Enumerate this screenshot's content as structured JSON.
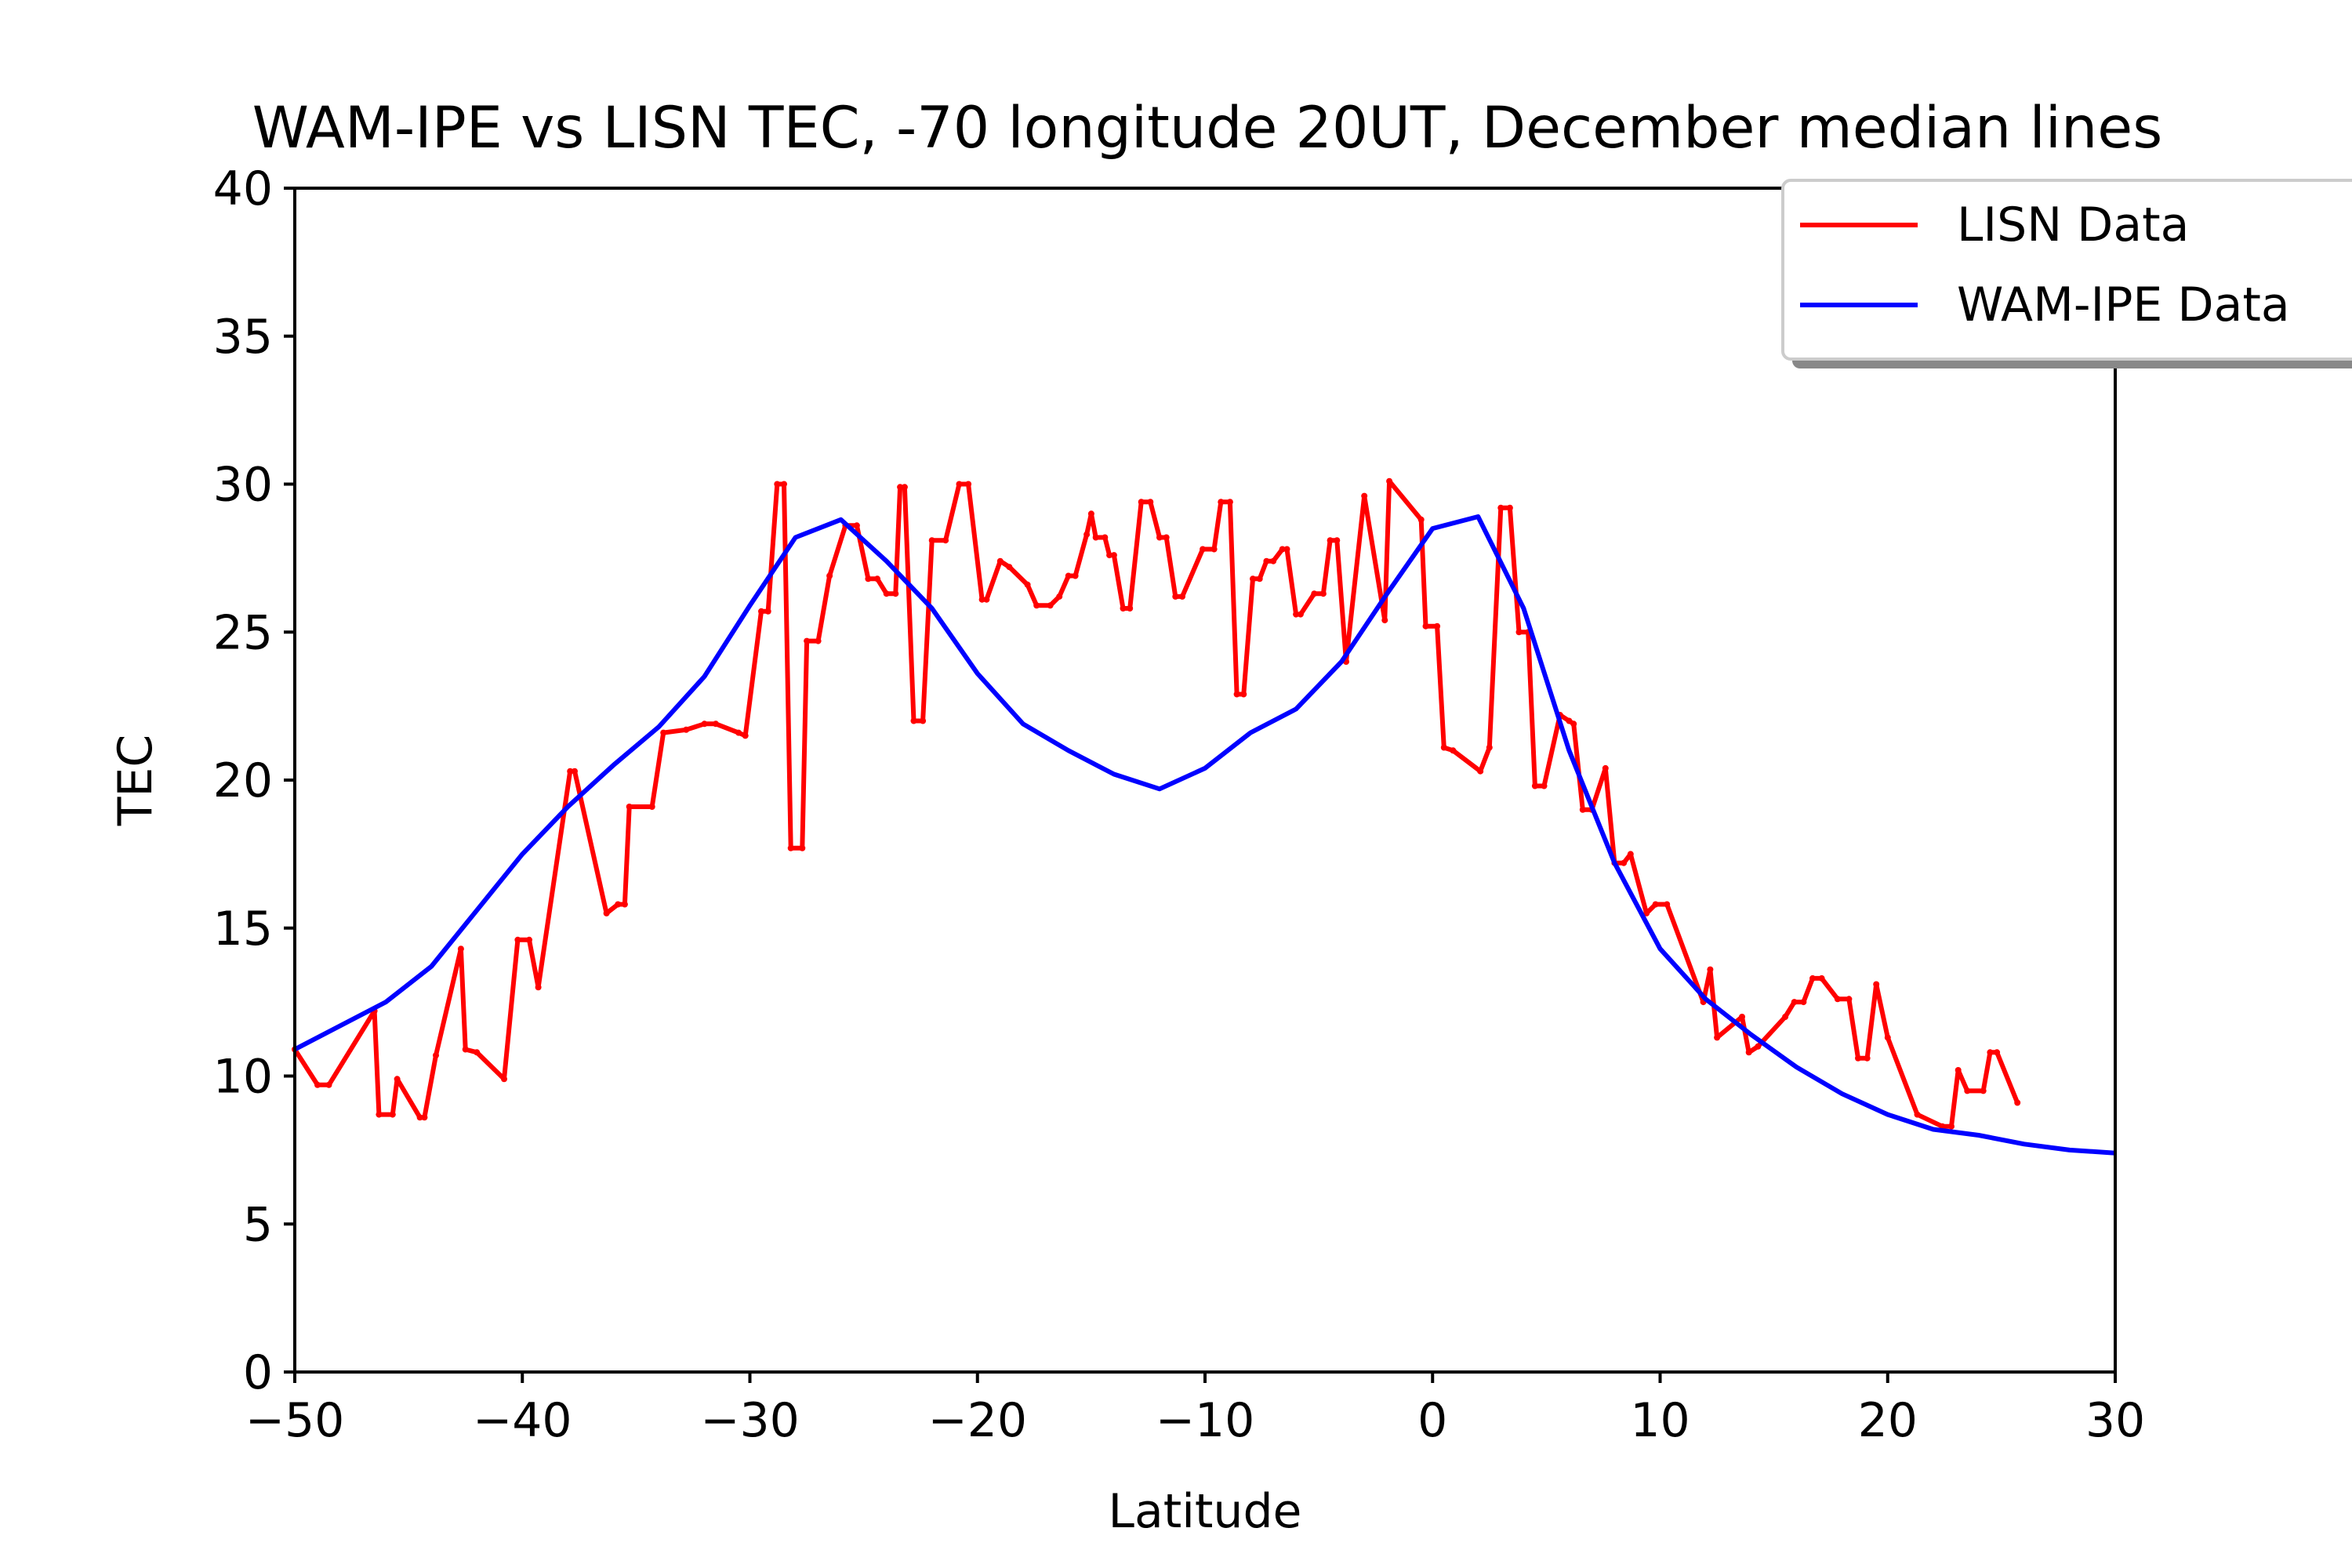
{
  "chart_data": {
    "type": "line",
    "title": "WAM-IPE vs LISN TEC, -70 longitude 20UT, December median lines",
    "xlabel": "Latitude",
    "ylabel": "TEC",
    "xlim": [
      -50,
      30
    ],
    "ylim": [
      0,
      40
    ],
    "x_ticks": [
      -50,
      -40,
      -30,
      -20,
      -10,
      0,
      10,
      20,
      30
    ],
    "x_tick_labels": [
      "−50",
      "−40",
      "−30",
      "−20",
      "−10",
      "0",
      "10",
      "20",
      "30"
    ],
    "y_ticks": [
      0,
      5,
      10,
      15,
      20,
      25,
      30,
      35,
      40
    ],
    "y_tick_labels": [
      "0",
      "5",
      "10",
      "15",
      "20",
      "25",
      "30",
      "35",
      "40"
    ],
    "grid": false,
    "legend": {
      "placement": "top-right"
    },
    "series": [
      {
        "name": "LISN Data",
        "color": "#ff0000",
        "points": [
          [
            -50.0,
            10.9
          ],
          [
            -49.0,
            9.7
          ],
          [
            -48.5,
            9.7
          ],
          [
            -46.5,
            12.2
          ],
          [
            -46.3,
            8.7
          ],
          [
            -45.7,
            8.7
          ],
          [
            -45.5,
            9.9
          ],
          [
            -44.5,
            8.6
          ],
          [
            -44.3,
            8.6
          ],
          [
            -43.8,
            10.7
          ],
          [
            -42.7,
            14.3
          ],
          [
            -42.5,
            10.9
          ],
          [
            -42.0,
            10.8
          ],
          [
            -40.8,
            9.9
          ],
          [
            -40.2,
            14.6
          ],
          [
            -39.7,
            14.6
          ],
          [
            -39.3,
            13.0
          ],
          [
            -37.9,
            20.3
          ],
          [
            -37.7,
            20.3
          ],
          [
            -36.3,
            15.5
          ],
          [
            -35.8,
            15.8
          ],
          [
            -35.5,
            15.8
          ],
          [
            -35.3,
            19.1
          ],
          [
            -34.3,
            19.1
          ],
          [
            -33.8,
            21.6
          ],
          [
            -32.8,
            21.7
          ],
          [
            -32.0,
            21.9
          ],
          [
            -31.5,
            21.9
          ],
          [
            -30.5,
            21.6
          ],
          [
            -30.2,
            21.5
          ],
          [
            -29.5,
            25.7
          ],
          [
            -29.2,
            25.7
          ],
          [
            -28.8,
            30.0
          ],
          [
            -28.5,
            30.0
          ],
          [
            -28.2,
            17.7
          ],
          [
            -27.7,
            17.7
          ],
          [
            -27.5,
            24.7
          ],
          [
            -27.0,
            24.7
          ],
          [
            -26.5,
            26.9
          ],
          [
            -25.8,
            28.6
          ],
          [
            -25.3,
            28.6
          ],
          [
            -24.8,
            26.8
          ],
          [
            -24.4,
            26.8
          ],
          [
            -24.0,
            26.3
          ],
          [
            -23.6,
            26.3
          ],
          [
            -23.4,
            29.9
          ],
          [
            -23.2,
            29.9
          ],
          [
            -22.8,
            22.0
          ],
          [
            -22.4,
            22.0
          ],
          [
            -22.0,
            28.1
          ],
          [
            -21.4,
            28.1
          ],
          [
            -20.8,
            30.0
          ],
          [
            -20.4,
            30.0
          ],
          [
            -19.8,
            26.1
          ],
          [
            -19.6,
            26.1
          ],
          [
            -19.0,
            27.4
          ],
          [
            -18.6,
            27.2
          ],
          [
            -17.8,
            26.6
          ],
          [
            -17.4,
            25.9
          ],
          [
            -16.8,
            25.9
          ],
          [
            -16.4,
            26.2
          ],
          [
            -16.0,
            26.9
          ],
          [
            -15.7,
            26.9
          ],
          [
            -15.2,
            28.3
          ],
          [
            -15.0,
            29.0
          ],
          [
            -14.8,
            28.2
          ],
          [
            -14.4,
            28.2
          ],
          [
            -14.2,
            27.6
          ],
          [
            -14.0,
            27.6
          ],
          [
            -13.6,
            25.8
          ],
          [
            -13.3,
            25.8
          ],
          [
            -12.8,
            29.4
          ],
          [
            -12.4,
            29.4
          ],
          [
            -12.0,
            28.2
          ],
          [
            -11.7,
            28.2
          ],
          [
            -11.3,
            26.2
          ],
          [
            -11.0,
            26.2
          ],
          [
            -10.1,
            27.8
          ],
          [
            -9.6,
            27.8
          ],
          [
            -9.3,
            29.4
          ],
          [
            -8.9,
            29.4
          ],
          [
            -8.6,
            22.9
          ],
          [
            -8.3,
            22.9
          ],
          [
            -7.9,
            26.8
          ],
          [
            -7.6,
            26.8
          ],
          [
            -7.3,
            27.4
          ],
          [
            -7.0,
            27.4
          ],
          [
            -6.6,
            27.8
          ],
          [
            -6.4,
            27.8
          ],
          [
            -6.0,
            25.6
          ],
          [
            -5.8,
            25.6
          ],
          [
            -5.2,
            26.3
          ],
          [
            -4.8,
            26.3
          ],
          [
            -4.5,
            28.1
          ],
          [
            -4.2,
            28.1
          ],
          [
            -3.8,
            24.0
          ],
          [
            -3.0,
            29.6
          ],
          [
            -2.1,
            25.4
          ],
          [
            -1.9,
            30.1
          ],
          [
            -0.5,
            28.8
          ],
          [
            -0.3,
            25.2
          ],
          [
            0.2,
            25.2
          ],
          [
            0.5,
            21.1
          ],
          [
            0.9,
            21.0
          ],
          [
            2.1,
            20.3
          ],
          [
            2.5,
            21.1
          ],
          [
            3.0,
            29.2
          ],
          [
            3.4,
            29.2
          ],
          [
            3.8,
            25.0
          ],
          [
            4.2,
            25.0
          ],
          [
            4.5,
            19.8
          ],
          [
            4.9,
            19.8
          ],
          [
            5.6,
            22.2
          ],
          [
            6.0,
            22.0
          ],
          [
            6.2,
            21.9
          ],
          [
            6.6,
            19.0
          ],
          [
            7.0,
            19.0
          ],
          [
            7.6,
            20.4
          ],
          [
            8.0,
            17.2
          ],
          [
            8.4,
            17.2
          ],
          [
            8.7,
            17.5
          ],
          [
            9.4,
            15.5
          ],
          [
            9.8,
            15.8
          ],
          [
            10.3,
            15.8
          ],
          [
            11.9,
            12.5
          ],
          [
            12.2,
            13.6
          ],
          [
            12.5,
            11.3
          ],
          [
            13.6,
            12.0
          ],
          [
            13.9,
            10.8
          ],
          [
            14.3,
            11.0
          ],
          [
            15.5,
            12.0
          ],
          [
            15.9,
            12.5
          ],
          [
            16.3,
            12.5
          ],
          [
            16.7,
            13.3
          ],
          [
            17.1,
            13.3
          ],
          [
            17.8,
            12.6
          ],
          [
            18.3,
            12.6
          ],
          [
            18.7,
            10.6
          ],
          [
            19.1,
            10.6
          ],
          [
            19.5,
            13.1
          ],
          [
            20.0,
            11.3
          ],
          [
            21.3,
            8.7
          ],
          [
            22.4,
            8.3
          ],
          [
            22.8,
            8.3
          ],
          [
            23.1,
            10.2
          ],
          [
            23.5,
            9.5
          ],
          [
            24.2,
            9.5
          ],
          [
            24.5,
            10.8
          ],
          [
            24.8,
            10.8
          ],
          [
            25.7,
            9.1
          ]
        ]
      },
      {
        "name": "WAM-IPE Data",
        "color": "#0000ff",
        "points": [
          [
            -50,
            10.9
          ],
          [
            -46,
            12.5
          ],
          [
            -44,
            13.7
          ],
          [
            -42,
            15.6
          ],
          [
            -40,
            17.5
          ],
          [
            -38,
            19.1
          ],
          [
            -36,
            20.5
          ],
          [
            -34,
            21.8
          ],
          [
            -32,
            23.5
          ],
          [
            -30,
            25.9
          ],
          [
            -28,
            28.2
          ],
          [
            -26,
            28.8
          ],
          [
            -24,
            27.4
          ],
          [
            -22,
            25.8
          ],
          [
            -20,
            23.6
          ],
          [
            -18,
            21.9
          ],
          [
            -16,
            21.0
          ],
          [
            -14,
            20.2
          ],
          [
            -12,
            19.7
          ],
          [
            -10,
            20.4
          ],
          [
            -8,
            21.6
          ],
          [
            -6,
            22.4
          ],
          [
            -4,
            24.0
          ],
          [
            -2,
            26.3
          ],
          [
            0,
            28.5
          ],
          [
            2,
            28.9
          ],
          [
            4,
            25.8
          ],
          [
            6,
            21.0
          ],
          [
            8,
            17.2
          ],
          [
            10,
            14.3
          ],
          [
            12,
            12.6
          ],
          [
            14,
            11.4
          ],
          [
            16,
            10.3
          ],
          [
            18,
            9.4
          ],
          [
            20,
            8.7
          ],
          [
            22,
            8.2
          ],
          [
            24,
            8.0
          ],
          [
            26,
            7.7
          ],
          [
            28,
            7.5
          ],
          [
            30,
            7.4
          ]
        ]
      }
    ]
  }
}
